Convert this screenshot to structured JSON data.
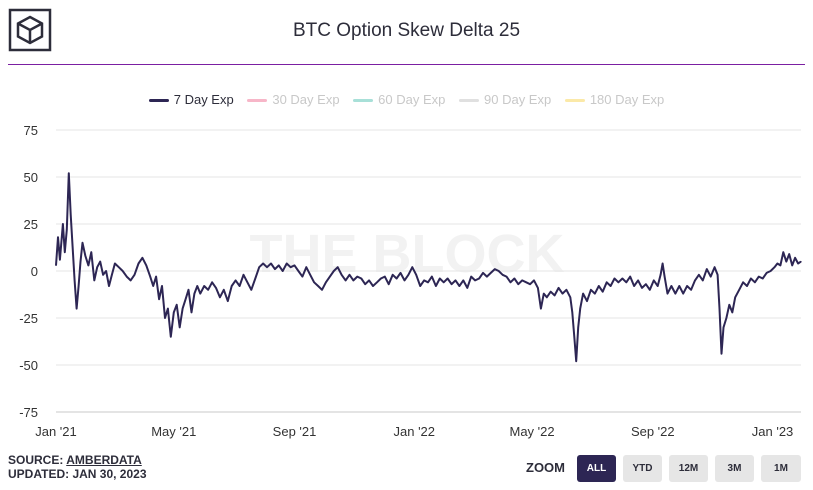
{
  "title": "BTC Option Skew Delta 25",
  "watermark": "THE BLOCK",
  "legend": [
    {
      "label": "7 Day Exp",
      "color": "#2d2654",
      "active": true
    },
    {
      "label": "30 Day Exp",
      "color": "#f7b6c8",
      "active": false
    },
    {
      "label": "60 Day Exp",
      "color": "#a8e0d8",
      "active": false
    },
    {
      "label": "90 Day Exp",
      "color": "#e0e0e0",
      "active": false
    },
    {
      "label": "180 Day Exp",
      "color": "#fbe9a8",
      "active": false
    }
  ],
  "source": {
    "prefix": "SOURCE: ",
    "name": "AMBERDATA",
    "updated": "UPDATED: JAN 30, 2023"
  },
  "zoom": {
    "label": "ZOOM",
    "buttons": [
      {
        "label": "ALL",
        "active": true
      },
      {
        "label": "YTD",
        "active": false
      },
      {
        "label": "12M",
        "active": false
      },
      {
        "label": "3M",
        "active": false
      },
      {
        "label": "1M",
        "active": false
      }
    ]
  },
  "chart_data": {
    "type": "line",
    "xlabel": "",
    "ylabel": "",
    "x_start": "2021-01-01",
    "x_end": "2023-01-30",
    "xticks": [
      "Jan '21",
      "May '21",
      "Sep '21",
      "Jan '22",
      "May '22",
      "Sep '22",
      "Jan '23"
    ],
    "yticks": [
      75,
      50,
      25,
      0,
      -25,
      -50,
      -75
    ],
    "ylim": [
      -75,
      75
    ],
    "grid": true,
    "series": [
      {
        "name": "7 Day Exp",
        "color": "#2d2654",
        "points": [
          [
            "2021-01-01",
            3
          ],
          [
            "2021-01-03",
            18
          ],
          [
            "2021-01-05",
            6
          ],
          [
            "2021-01-08",
            25
          ],
          [
            "2021-01-10",
            10
          ],
          [
            "2021-01-12",
            22
          ],
          [
            "2021-01-14",
            52
          ],
          [
            "2021-01-16",
            30
          ],
          [
            "2021-01-18",
            12
          ],
          [
            "2021-01-20",
            -5
          ],
          [
            "2021-01-22",
            -20
          ],
          [
            "2021-01-24",
            -8
          ],
          [
            "2021-01-26",
            5
          ],
          [
            "2021-01-28",
            15
          ],
          [
            "2021-01-31",
            8
          ],
          [
            "2021-02-03",
            3
          ],
          [
            "2021-02-06",
            10
          ],
          [
            "2021-02-09",
            -5
          ],
          [
            "2021-02-12",
            2
          ],
          [
            "2021-02-15",
            5
          ],
          [
            "2021-02-18",
            -2
          ],
          [
            "2021-02-21",
            0
          ],
          [
            "2021-02-24",
            -8
          ],
          [
            "2021-02-27",
            -2
          ],
          [
            "2021-03-02",
            4
          ],
          [
            "2021-03-06",
            2
          ],
          [
            "2021-03-10",
            0
          ],
          [
            "2021-03-14",
            -3
          ],
          [
            "2021-03-18",
            -5
          ],
          [
            "2021-03-22",
            -2
          ],
          [
            "2021-03-26",
            4
          ],
          [
            "2021-03-30",
            7
          ],
          [
            "2021-04-03",
            3
          ],
          [
            "2021-04-07",
            -3
          ],
          [
            "2021-04-10",
            -8
          ],
          [
            "2021-04-13",
            -3
          ],
          [
            "2021-04-16",
            -15
          ],
          [
            "2021-04-19",
            -8
          ],
          [
            "2021-04-22",
            -25
          ],
          [
            "2021-04-25",
            -20
          ],
          [
            "2021-04-28",
            -35
          ],
          [
            "2021-05-01",
            -22
          ],
          [
            "2021-05-04",
            -18
          ],
          [
            "2021-05-07",
            -30
          ],
          [
            "2021-05-10",
            -20
          ],
          [
            "2021-05-13",
            -15
          ],
          [
            "2021-05-16",
            -10
          ],
          [
            "2021-05-19",
            -22
          ],
          [
            "2021-05-22",
            -12
          ],
          [
            "2021-05-25",
            -8
          ],
          [
            "2021-05-28",
            -12
          ],
          [
            "2021-06-01",
            -8
          ],
          [
            "2021-06-05",
            -10
          ],
          [
            "2021-06-09",
            -6
          ],
          [
            "2021-06-13",
            -9
          ],
          [
            "2021-06-17",
            -14
          ],
          [
            "2021-06-21",
            -10
          ],
          [
            "2021-06-25",
            -16
          ],
          [
            "2021-06-29",
            -8
          ],
          [
            "2021-07-03",
            -5
          ],
          [
            "2021-07-07",
            -8
          ],
          [
            "2021-07-11",
            -2
          ],
          [
            "2021-07-15",
            -6
          ],
          [
            "2021-07-19",
            -10
          ],
          [
            "2021-07-23",
            -4
          ],
          [
            "2021-07-27",
            2
          ],
          [
            "2021-07-31",
            4
          ],
          [
            "2021-08-04",
            2
          ],
          [
            "2021-08-08",
            4
          ],
          [
            "2021-08-12",
            1
          ],
          [
            "2021-08-16",
            3
          ],
          [
            "2021-08-20",
            0
          ],
          [
            "2021-08-24",
            4
          ],
          [
            "2021-08-28",
            2
          ],
          [
            "2021-09-01",
            3
          ],
          [
            "2021-09-05",
            0
          ],
          [
            "2021-09-09",
            -3
          ],
          [
            "2021-09-13",
            2
          ],
          [
            "2021-09-17",
            -2
          ],
          [
            "2021-09-21",
            -6
          ],
          [
            "2021-09-25",
            -8
          ],
          [
            "2021-09-29",
            -10
          ],
          [
            "2021-10-03",
            -6
          ],
          [
            "2021-10-07",
            -3
          ],
          [
            "2021-10-11",
            0
          ],
          [
            "2021-10-15",
            2
          ],
          [
            "2021-10-19",
            -2
          ],
          [
            "2021-10-23",
            -5
          ],
          [
            "2021-10-27",
            -2
          ],
          [
            "2021-10-31",
            -5
          ],
          [
            "2021-11-04",
            -3
          ],
          [
            "2021-11-08",
            -4
          ],
          [
            "2021-11-12",
            -7
          ],
          [
            "2021-11-16",
            -5
          ],
          [
            "2021-11-20",
            -8
          ],
          [
            "2021-11-24",
            -6
          ],
          [
            "2021-11-28",
            -4
          ],
          [
            "2021-12-02",
            -3
          ],
          [
            "2021-12-06",
            -7
          ],
          [
            "2021-12-10",
            -2
          ],
          [
            "2021-12-14",
            -4
          ],
          [
            "2021-12-18",
            -1
          ],
          [
            "2021-12-22",
            -5
          ],
          [
            "2021-12-26",
            -2
          ],
          [
            "2021-12-30",
            2
          ],
          [
            "2022-01-03",
            -2
          ],
          [
            "2022-01-07",
            -8
          ],
          [
            "2022-01-11",
            -5
          ],
          [
            "2022-01-15",
            -6
          ],
          [
            "2022-01-19",
            -3
          ],
          [
            "2022-01-23",
            -8
          ],
          [
            "2022-01-27",
            -4
          ],
          [
            "2022-01-31",
            -6
          ],
          [
            "2022-02-04",
            -4
          ],
          [
            "2022-02-08",
            -7
          ],
          [
            "2022-02-12",
            -5
          ],
          [
            "2022-02-16",
            -8
          ],
          [
            "2022-02-20",
            -5
          ],
          [
            "2022-02-24",
            -9
          ],
          [
            "2022-02-28",
            -3
          ],
          [
            "2022-03-04",
            -5
          ],
          [
            "2022-03-08",
            -4
          ],
          [
            "2022-03-12",
            -1
          ],
          [
            "2022-03-16",
            -3
          ],
          [
            "2022-03-20",
            -1
          ],
          [
            "2022-03-24",
            1
          ],
          [
            "2022-03-28",
            0
          ],
          [
            "2022-04-01",
            -2
          ],
          [
            "2022-04-05",
            -3
          ],
          [
            "2022-04-09",
            -6
          ],
          [
            "2022-04-13",
            -4
          ],
          [
            "2022-04-17",
            -7
          ],
          [
            "2022-04-21",
            -5
          ],
          [
            "2022-04-25",
            -6
          ],
          [
            "2022-04-29",
            -7
          ],
          [
            "2022-05-03",
            -5
          ],
          [
            "2022-05-07",
            -9
          ],
          [
            "2022-05-10",
            -20
          ],
          [
            "2022-05-13",
            -12
          ],
          [
            "2022-05-16",
            -14
          ],
          [
            "2022-05-20",
            -11
          ],
          [
            "2022-05-24",
            -13
          ],
          [
            "2022-05-28",
            -9
          ],
          [
            "2022-06-01",
            -12
          ],
          [
            "2022-06-05",
            -10
          ],
          [
            "2022-06-09",
            -14
          ],
          [
            "2022-06-11",
            -22
          ],
          [
            "2022-06-13",
            -35
          ],
          [
            "2022-06-15",
            -48
          ],
          [
            "2022-06-17",
            -30
          ],
          [
            "2022-06-19",
            -20
          ],
          [
            "2022-06-22",
            -12
          ],
          [
            "2022-06-26",
            -16
          ],
          [
            "2022-06-30",
            -10
          ],
          [
            "2022-07-04",
            -12
          ],
          [
            "2022-07-08",
            -8
          ],
          [
            "2022-07-12",
            -11
          ],
          [
            "2022-07-16",
            -6
          ],
          [
            "2022-07-20",
            -8
          ],
          [
            "2022-07-24",
            -4
          ],
          [
            "2022-07-28",
            -6
          ],
          [
            "2022-08-01",
            -4
          ],
          [
            "2022-08-05",
            -6
          ],
          [
            "2022-08-09",
            -3
          ],
          [
            "2022-08-13",
            -8
          ],
          [
            "2022-08-17",
            -5
          ],
          [
            "2022-08-21",
            -9
          ],
          [
            "2022-08-25",
            -7
          ],
          [
            "2022-08-29",
            -10
          ],
          [
            "2022-09-02",
            -5
          ],
          [
            "2022-09-06",
            -8
          ],
          [
            "2022-09-09",
            -2
          ],
          [
            "2022-09-11",
            4
          ],
          [
            "2022-09-13",
            -3
          ],
          [
            "2022-09-16",
            -12
          ],
          [
            "2022-09-20",
            -8
          ],
          [
            "2022-09-24",
            -12
          ],
          [
            "2022-09-28",
            -8
          ],
          [
            "2022-10-02",
            -12
          ],
          [
            "2022-10-06",
            -8
          ],
          [
            "2022-10-10",
            -10
          ],
          [
            "2022-10-14",
            -5
          ],
          [
            "2022-10-18",
            -2
          ],
          [
            "2022-10-22",
            -5
          ],
          [
            "2022-10-26",
            1
          ],
          [
            "2022-10-30",
            -3
          ],
          [
            "2022-11-03",
            2
          ],
          [
            "2022-11-06",
            -2
          ],
          [
            "2022-11-08",
            -20
          ],
          [
            "2022-11-10",
            -44
          ],
          [
            "2022-11-12",
            -30
          ],
          [
            "2022-11-15",
            -25
          ],
          [
            "2022-11-18",
            -18
          ],
          [
            "2022-11-21",
            -22
          ],
          [
            "2022-11-24",
            -14
          ],
          [
            "2022-11-28",
            -10
          ],
          [
            "2022-12-02",
            -6
          ],
          [
            "2022-12-06",
            -8
          ],
          [
            "2022-12-10",
            -4
          ],
          [
            "2022-12-14",
            -6
          ],
          [
            "2022-12-18",
            -3
          ],
          [
            "2022-12-22",
            -4
          ],
          [
            "2022-12-26",
            -1
          ],
          [
            "2022-12-30",
            0
          ],
          [
            "2023-01-03",
            2
          ],
          [
            "2023-01-06",
            4
          ],
          [
            "2023-01-09",
            3
          ],
          [
            "2023-01-12",
            10
          ],
          [
            "2023-01-15",
            5
          ],
          [
            "2023-01-18",
            9
          ],
          [
            "2023-01-21",
            3
          ],
          [
            "2023-01-24",
            7
          ],
          [
            "2023-01-27",
            4
          ],
          [
            "2023-01-30",
            5
          ]
        ]
      }
    ]
  }
}
